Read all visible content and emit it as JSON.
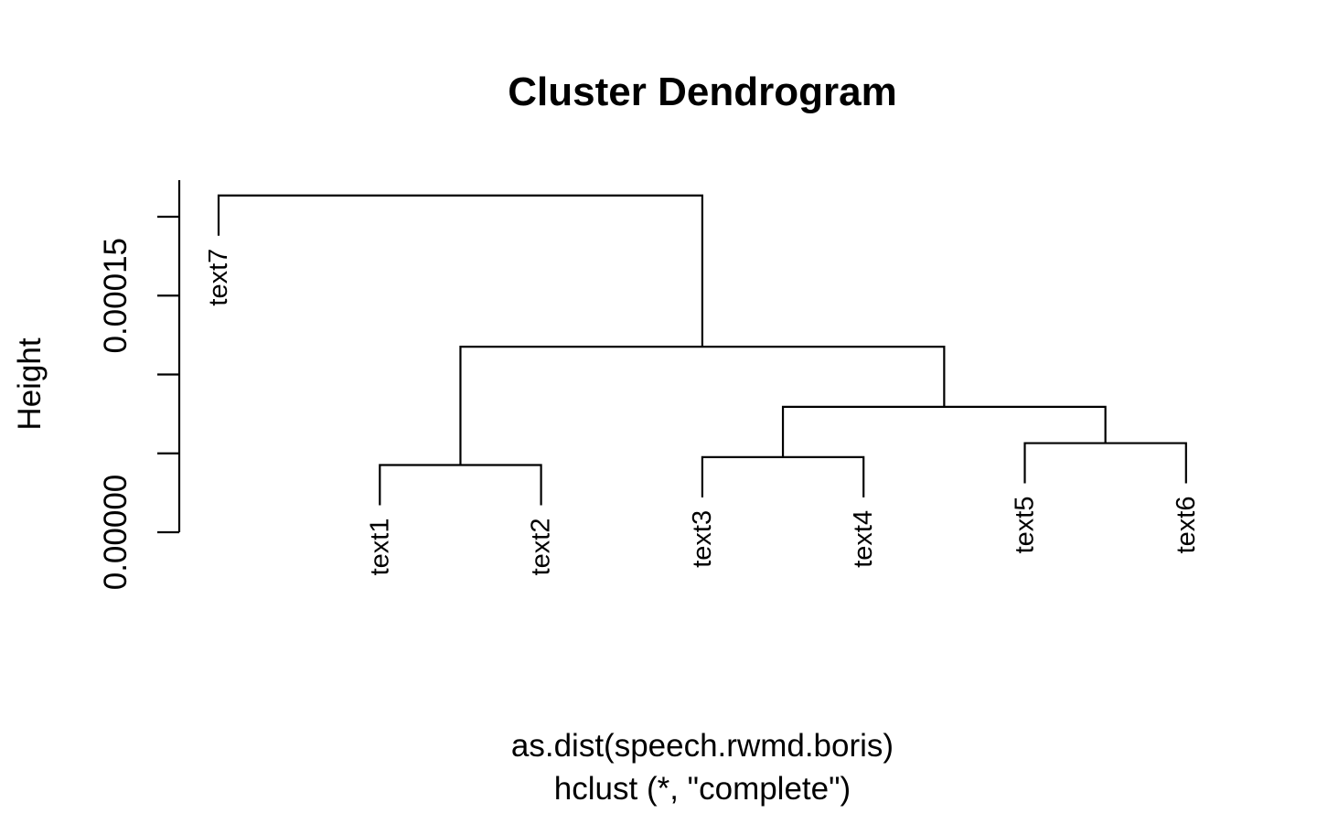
{
  "chart_data": {
    "type": "dendrogram",
    "title": "Cluster Dendrogram",
    "ylabel": "Height",
    "xlabel": "as.dist(speech.rwmd.boris)",
    "subtitle": "hclust (*, \"complete\")",
    "yticks": [
      0,
      5e-05,
      0.0001,
      0.00015,
      0.0002
    ],
    "ytick_labels": [
      "0.00000",
      "",
      "",
      "0.00015",
      ""
    ],
    "ylim": [
      0,
      0.00022
    ],
    "leaves": [
      "text7",
      "text1",
      "text2",
      "text3",
      "text4",
      "text5",
      "text6"
    ],
    "merges": [
      {
        "left": "text5",
        "right": "text6",
        "height": 5.65e-05
      },
      {
        "left": "text3",
        "right": "text4",
        "height": 4.76e-05
      },
      {
        "left": "text1",
        "right": "text2",
        "height": 4.26e-05
      },
      {
        "left": "text3+text4",
        "right": "text5+text6",
        "height": 7.95e-05
      },
      {
        "left": "text1+text2",
        "right": "text3+text4+text5+text6",
        "height": 0.0001176
      },
      {
        "left": "text7",
        "right": "text1+text2+text3+text4+text5+text6",
        "height": 0.0002135
      }
    ],
    "leaf_tip_height": 2.55e-05
  }
}
